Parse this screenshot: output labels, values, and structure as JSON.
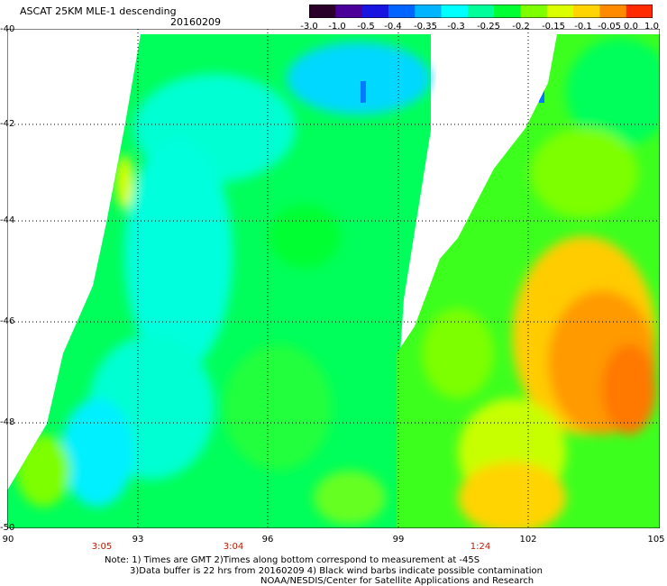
{
  "title": "ASCAT 25KM MLE-1 descending",
  "date": "20160209",
  "colorbar": {
    "labels": [
      "-3.0",
      "-1.0",
      "-0.5",
      "-0.4",
      "-0.35",
      "-0.3",
      "-0.25",
      "-0.2",
      "-0.15",
      "-0.1",
      "-0.05",
      "0.0",
      "1.0"
    ],
    "colors": [
      "#2b0028",
      "#4b009a",
      "#1a14e0",
      "#0064ff",
      "#00b4ff",
      "#00ffff",
      "#00ff9a",
      "#00ff32",
      "#7dff00",
      "#dcff00",
      "#ffd400",
      "#ff8a00",
      "#ff2a00"
    ]
  },
  "axes": {
    "lat_labels": [
      "-40",
      "-42",
      "-44",
      "-46",
      "-48",
      "-50"
    ],
    "lon_labels": [
      "90",
      "93",
      "96",
      "99",
      "102",
      "105"
    ]
  },
  "time_labels": [
    "3:05",
    "3:04",
    "1:24"
  ],
  "notes": {
    "line1": "Note: 1) Times are GMT 2)Times along bottom correspond to measurement at -45S",
    "line2": "3)Data buffer is 22 hrs from 20160209 4) Black wind barbs indicate possible contamination",
    "line3": "NOAA/NESDIS/Center for Satellite Applications and Research"
  },
  "palette": {
    "cyan": "#00ffff",
    "aqua": "#00ffb4",
    "green": "#00ff32",
    "lime": "#7dff00",
    "yellow": "#ffff00",
    "orange": "#ffa000",
    "deep_orange": "#ff7800",
    "blue": "#0078ff",
    "gap": "#ffffff",
    "grid": "#000000"
  }
}
